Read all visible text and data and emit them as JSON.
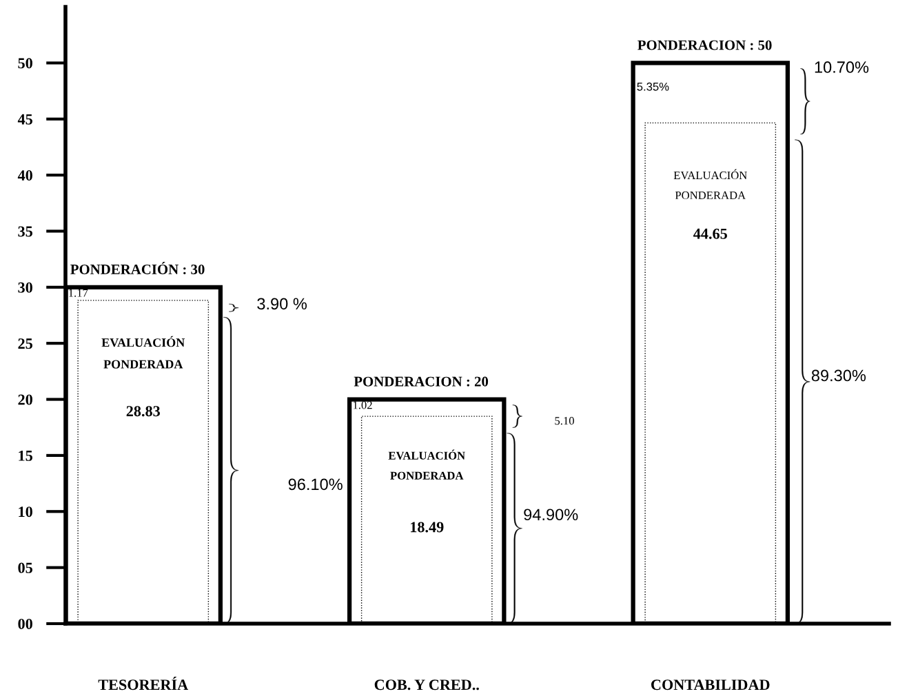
{
  "chart_data": {
    "type": "bar",
    "categories": [
      "TESORERÍA",
      "COB. Y CRED..",
      "CONTABILIDAD"
    ],
    "series": [
      {
        "color": "#000000",
        "line_style": "solid",
        "values": [
          30,
          20,
          50
        ],
        "value_labels": [
          "PONDERACIÓN : 30",
          "PONDERACION : 20",
          "PONDERACION : 50"
        ]
      },
      {
        "color": "#000000",
        "line_style": "dotted",
        "values": [
          28.83,
          18.49,
          44.65
        ],
        "value_labels": [
          "28.83",
          "18.49",
          "44.65"
        ]
      }
    ],
    "ylim": [
      0,
      55
    ],
    "yticks": [
      {
        "value": 0,
        "label": "00"
      },
      {
        "value": 5,
        "label": "05"
      },
      10,
      15,
      20,
      25,
      30,
      35,
      40,
      45,
      50
    ],
    "annotations": [
      "EVALUACIÓN\nPONDERADA",
      "1.17",
      "3.90 %",
      "96.10%",
      "EVALUACIÓN\nPONDERADA",
      "1.02",
      "5.10",
      "94.90%",
      "EVALUACIÓN\nPONDERADA",
      "5.35%",
      "10.70%",
      "89.30%"
    ]
  }
}
